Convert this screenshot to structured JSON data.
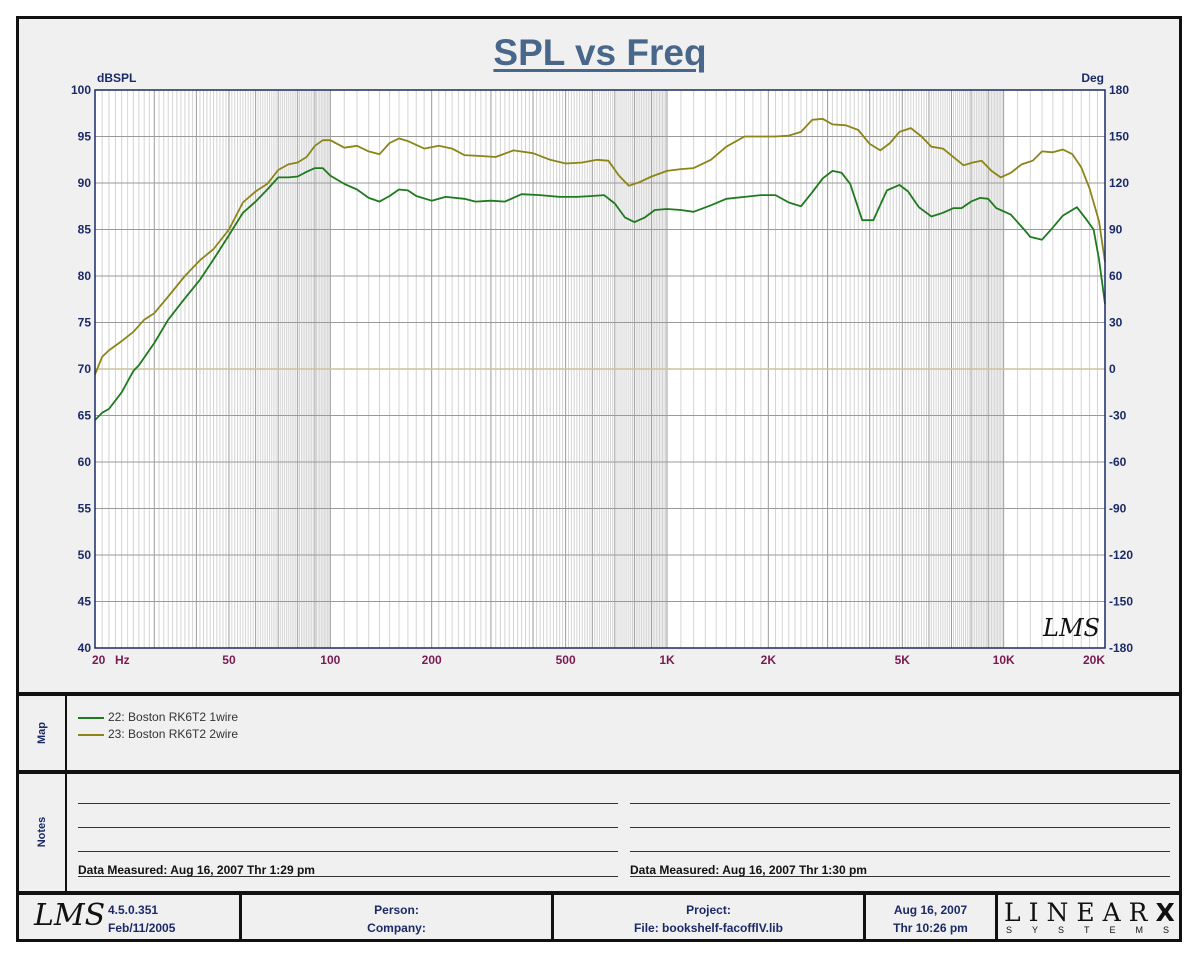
{
  "chart_data": {
    "type": "line",
    "title": "SPL vs Freq",
    "ylabel_left": "dBSPL",
    "ylabel_right": "Deg",
    "xscale": "log",
    "xlim": [
      20,
      20000
    ],
    "ylim": [
      40,
      100
    ],
    "ylim_right": [
      -180,
      180
    ],
    "grid": true,
    "x_ticks": [
      {
        "value": 20,
        "label": "20"
      },
      {
        "value": 50,
        "label": "50"
      },
      {
        "value": 100,
        "label": "100"
      },
      {
        "value": 200,
        "label": "200"
      },
      {
        "value": 500,
        "label": "500"
      },
      {
        "value": 1000,
        "label": "1K"
      },
      {
        "value": 2000,
        "label": "2K"
      },
      {
        "value": 5000,
        "label": "5K"
      },
      {
        "value": 10000,
        "label": "10K"
      },
      {
        "value": 20000,
        "label": "20K"
      }
    ],
    "x_unit": "Hz",
    "y_ticks": [
      100,
      95,
      90,
      85,
      80,
      75,
      70,
      65,
      60,
      55,
      50,
      45,
      40
    ],
    "y_ticks_right": [
      180,
      150,
      120,
      90,
      60,
      30,
      0,
      -30,
      -60,
      -90,
      -120,
      -150,
      -180
    ],
    "phase_zero_line": {
      "value": 0,
      "color": "#c8c49a"
    },
    "series": [
      {
        "name": "22: Boston RK6T2 1wire",
        "color": "#1e7a1e",
        "points": [
          [
            20,
            64.5
          ],
          [
            21,
            65.3
          ],
          [
            22,
            65.7
          ],
          [
            24,
            67.5
          ],
          [
            26,
            69.8
          ],
          [
            27,
            70.4
          ],
          [
            30,
            72.8
          ],
          [
            33,
            75.3
          ],
          [
            37,
            77.6
          ],
          [
            41,
            79.6
          ],
          [
            45,
            81.8
          ],
          [
            50,
            84.4
          ],
          [
            55,
            86.8
          ],
          [
            60,
            88.0
          ],
          [
            65,
            89.3
          ],
          [
            70,
            90.6
          ],
          [
            75,
            90.6
          ],
          [
            80,
            90.7
          ],
          [
            85,
            91.2
          ],
          [
            90,
            91.6
          ],
          [
            95,
            91.6
          ],
          [
            100,
            90.8
          ],
          [
            110,
            89.9
          ],
          [
            120,
            89.3
          ],
          [
            130,
            88.4
          ],
          [
            140,
            88.0
          ],
          [
            150,
            88.6
          ],
          [
            160,
            89.3
          ],
          [
            170,
            89.2
          ],
          [
            180,
            88.6
          ],
          [
            200,
            88.1
          ],
          [
            220,
            88.5
          ],
          [
            250,
            88.3
          ],
          [
            270,
            88.0
          ],
          [
            300,
            88.1
          ],
          [
            330,
            88.0
          ],
          [
            370,
            88.8
          ],
          [
            420,
            88.7
          ],
          [
            480,
            88.5
          ],
          [
            540,
            88.5
          ],
          [
            600,
            88.6
          ],
          [
            650,
            88.7
          ],
          [
            700,
            87.8
          ],
          [
            750,
            86.3
          ],
          [
            800,
            85.8
          ],
          [
            860,
            86.3
          ],
          [
            920,
            87.1
          ],
          [
            1000,
            87.2
          ],
          [
            1100,
            87.1
          ],
          [
            1200,
            86.9
          ],
          [
            1350,
            87.6
          ],
          [
            1500,
            88.3
          ],
          [
            1700,
            88.5
          ],
          [
            1900,
            88.7
          ],
          [
            2100,
            88.7
          ],
          [
            2300,
            87.9
          ],
          [
            2500,
            87.5
          ],
          [
            2700,
            89.0
          ],
          [
            2900,
            90.5
          ],
          [
            3100,
            91.3
          ],
          [
            3300,
            91.1
          ],
          [
            3500,
            89.9
          ],
          [
            3800,
            86.0
          ],
          [
            4100,
            86.0
          ],
          [
            4500,
            89.2
          ],
          [
            4900,
            89.8
          ],
          [
            5200,
            89.1
          ],
          [
            5600,
            87.4
          ],
          [
            6100,
            86.4
          ],
          [
            6600,
            86.8
          ],
          [
            7100,
            87.3
          ],
          [
            7500,
            87.3
          ],
          [
            8000,
            88.0
          ],
          [
            8500,
            88.4
          ],
          [
            9000,
            88.3
          ],
          [
            9500,
            87.3
          ],
          [
            10500,
            86.6
          ],
          [
            11500,
            85.0
          ],
          [
            12000,
            84.2
          ],
          [
            13000,
            83.9
          ],
          [
            14000,
            85.2
          ],
          [
            15000,
            86.5
          ],
          [
            16500,
            87.4
          ],
          [
            17500,
            86.2
          ],
          [
            18500,
            85.0
          ],
          [
            19200,
            81.8
          ],
          [
            20000,
            77.0
          ]
        ]
      },
      {
        "name": "23: Boston RK6T2 2wire",
        "color": "#8b8518",
        "points": [
          [
            20,
            69.4
          ],
          [
            21,
            71.3
          ],
          [
            22,
            72.0
          ],
          [
            24,
            73.0
          ],
          [
            26,
            74.0
          ],
          [
            28,
            75.3
          ],
          [
            30,
            76.0
          ],
          [
            33,
            77.8
          ],
          [
            37,
            80.0
          ],
          [
            41,
            81.7
          ],
          [
            45,
            82.9
          ],
          [
            50,
            85.0
          ],
          [
            55,
            87.9
          ],
          [
            60,
            89.1
          ],
          [
            65,
            89.9
          ],
          [
            70,
            91.4
          ],
          [
            75,
            92.0
          ],
          [
            80,
            92.2
          ],
          [
            85,
            92.8
          ],
          [
            90,
            94.0
          ],
          [
            95,
            94.6
          ],
          [
            100,
            94.6
          ],
          [
            110,
            93.8
          ],
          [
            120,
            94.0
          ],
          [
            130,
            93.4
          ],
          [
            140,
            93.1
          ],
          [
            150,
            94.3
          ],
          [
            160,
            94.8
          ],
          [
            170,
            94.5
          ],
          [
            190,
            93.7
          ],
          [
            210,
            94.0
          ],
          [
            230,
            93.7
          ],
          [
            250,
            93.0
          ],
          [
            280,
            92.9
          ],
          [
            310,
            92.8
          ],
          [
            350,
            93.5
          ],
          [
            400,
            93.2
          ],
          [
            450,
            92.5
          ],
          [
            500,
            92.1
          ],
          [
            560,
            92.2
          ],
          [
            620,
            92.5
          ],
          [
            670,
            92.4
          ],
          [
            720,
            90.8
          ],
          [
            770,
            89.7
          ],
          [
            830,
            90.1
          ],
          [
            900,
            90.7
          ],
          [
            1000,
            91.3
          ],
          [
            1100,
            91.5
          ],
          [
            1200,
            91.6
          ],
          [
            1350,
            92.5
          ],
          [
            1500,
            93.9
          ],
          [
            1700,
            95.0
          ],
          [
            1900,
            95.0
          ],
          [
            2100,
            95.0
          ],
          [
            2300,
            95.1
          ],
          [
            2500,
            95.5
          ],
          [
            2700,
            96.8
          ],
          [
            2900,
            96.9
          ],
          [
            3100,
            96.3
          ],
          [
            3400,
            96.2
          ],
          [
            3700,
            95.7
          ],
          [
            4000,
            94.2
          ],
          [
            4300,
            93.5
          ],
          [
            4600,
            94.3
          ],
          [
            4900,
            95.5
          ],
          [
            5300,
            95.9
          ],
          [
            5700,
            95.0
          ],
          [
            6100,
            93.9
          ],
          [
            6600,
            93.7
          ],
          [
            7200,
            92.6
          ],
          [
            7600,
            91.9
          ],
          [
            8100,
            92.2
          ],
          [
            8600,
            92.4
          ],
          [
            9200,
            91.3
          ],
          [
            9800,
            90.6
          ],
          [
            10500,
            91.1
          ],
          [
            11300,
            92.0
          ],
          [
            12200,
            92.4
          ],
          [
            13000,
            93.4
          ],
          [
            14000,
            93.3
          ],
          [
            15000,
            93.6
          ],
          [
            16000,
            93.1
          ],
          [
            17000,
            91.7
          ],
          [
            18000,
            89.4
          ],
          [
            19200,
            85.9
          ],
          [
            20000,
            81.5
          ]
        ]
      }
    ]
  },
  "map": {
    "label": "Map",
    "entries": [
      {
        "text": "22: Boston RK6T2 1wire",
        "color": "#1e7a1e"
      },
      {
        "text": "23: Boston RK6T2 2wire",
        "color": "#8b8518"
      }
    ]
  },
  "notes": {
    "label": "Notes",
    "left_measured": "Data Measured: Aug 16, 2007  Thr  1:29 pm",
    "right_measured": "Data Measured: Aug 16, 2007  Thr  1:30 pm"
  },
  "footer": {
    "logo": "LMS",
    "version": "4.5.0.351",
    "version_date": "Feb/11/2005",
    "person_label": "Person:",
    "company_label": "Company:",
    "project_label": "Project:",
    "file_label": "File: bookshelf-facofflV.lib",
    "date": "Aug 16, 2007",
    "time": "Thr  10:26 pm",
    "brand_big": "LINEAR",
    "brand_x": "X",
    "brand_small": "SYSTEMS"
  },
  "watermark": "LMS"
}
